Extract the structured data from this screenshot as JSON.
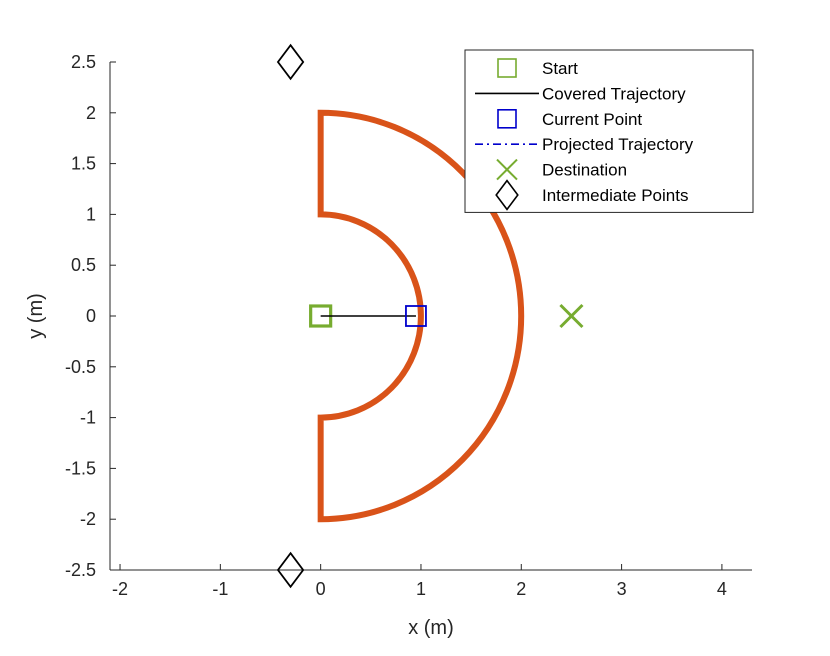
{
  "chart_data": {
    "type": "scatter",
    "title": "",
    "xlabel": "x (m)",
    "ylabel": "y (m)",
    "xlim": [
      -2.1,
      4.3
    ],
    "ylim": [
      -2.5,
      2.5
    ],
    "xticks": [
      "-2",
      "-1",
      "0",
      "1",
      "2",
      "3",
      "4"
    ],
    "yticks": [
      "-2.5",
      "-2",
      "-1.5",
      "-1",
      "-0.5",
      "0",
      "0.5",
      "1",
      "1.5",
      "2",
      "2.5"
    ],
    "grid": false,
    "legend_position": "top-right",
    "colors": {
      "region": "#D95319",
      "start": "#77AC30",
      "covered": "#000000",
      "current": "#0000CC",
      "projected": "#0000CC",
      "destination": "#77AC30",
      "intermediate": "#000000"
    },
    "region": {
      "shape": "half-annulus",
      "center": [
        0,
        0
      ],
      "inner_radius": 1,
      "outer_radius": 2
    },
    "series": [
      {
        "name": "Start",
        "marker": "square",
        "points": [
          [
            0,
            0
          ]
        ]
      },
      {
        "name": "Covered Trajectory",
        "marker": "line-solid",
        "points": [
          [
            0,
            0
          ],
          [
            0.95,
            0
          ]
        ]
      },
      {
        "name": "Current Point",
        "marker": "square",
        "points": [
          [
            0.95,
            0
          ]
        ]
      },
      {
        "name": "Projected Trajectory",
        "marker": "line-dashdot",
        "points": []
      },
      {
        "name": "Destination",
        "marker": "x",
        "points": [
          [
            2.5,
            0
          ]
        ]
      },
      {
        "name": "Intermediate Points",
        "marker": "diamond",
        "points": [
          [
            -0.3,
            2.5
          ],
          [
            -0.3,
            -2.5
          ]
        ]
      }
    ]
  }
}
